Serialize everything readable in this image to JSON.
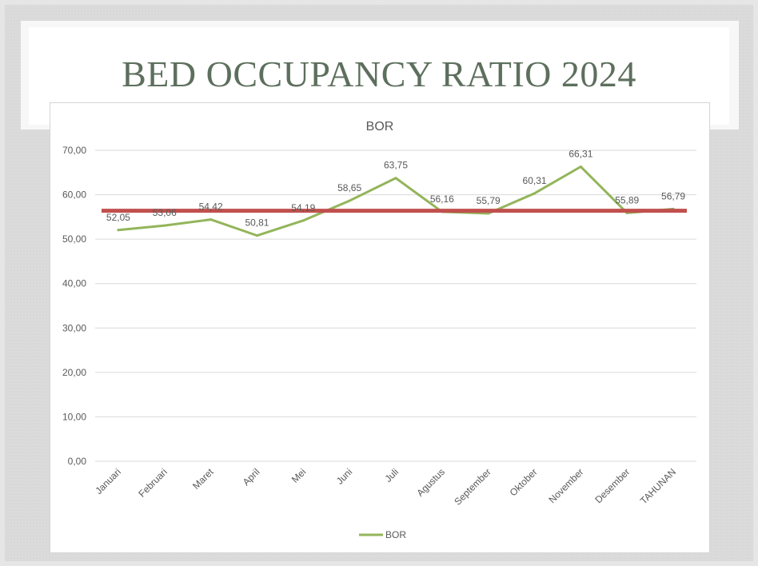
{
  "slide": {
    "title": "BED OCCUPANCY RATIO 2024"
  },
  "colors": {
    "line": "#93b55a",
    "reference": "#c0504d",
    "title": "#5d6f5d",
    "grid": "#d9d9d9",
    "text": "#595959"
  },
  "chart_data": {
    "type": "line",
    "title": "BOR",
    "categories": [
      "Januari",
      "Februari",
      "Maret",
      "April",
      "Mei",
      "Juni",
      "Juli",
      "Agustus",
      "September",
      "Oktober",
      "November",
      "Desember",
      "TAHUNAN"
    ],
    "series": [
      {
        "name": "BOR",
        "values": [
          52.05,
          53.06,
          54.42,
          50.81,
          54.19,
          58.65,
          63.75,
          56.16,
          55.79,
          60.31,
          66.31,
          55.89,
          56.79
        ]
      }
    ],
    "data_labels": [
      "52,05",
      "53,06",
      "54,42",
      "50,81",
      "54,19",
      "58,65",
      "63,75",
      "56,16",
      "55,79",
      "60,31",
      "66,31",
      "55,89",
      "56,79"
    ],
    "reference_line": {
      "value": 56.4
    },
    "ylim": [
      0,
      70
    ],
    "yticks": [
      "0,00",
      "10,00",
      "20,00",
      "30,00",
      "40,00",
      "50,00",
      "60,00",
      "70,00"
    ],
    "ytick_values": [
      0,
      10,
      20,
      30,
      40,
      50,
      60,
      70
    ],
    "grid": true,
    "legend": {
      "position": "bottom",
      "label": "BOR"
    }
  }
}
